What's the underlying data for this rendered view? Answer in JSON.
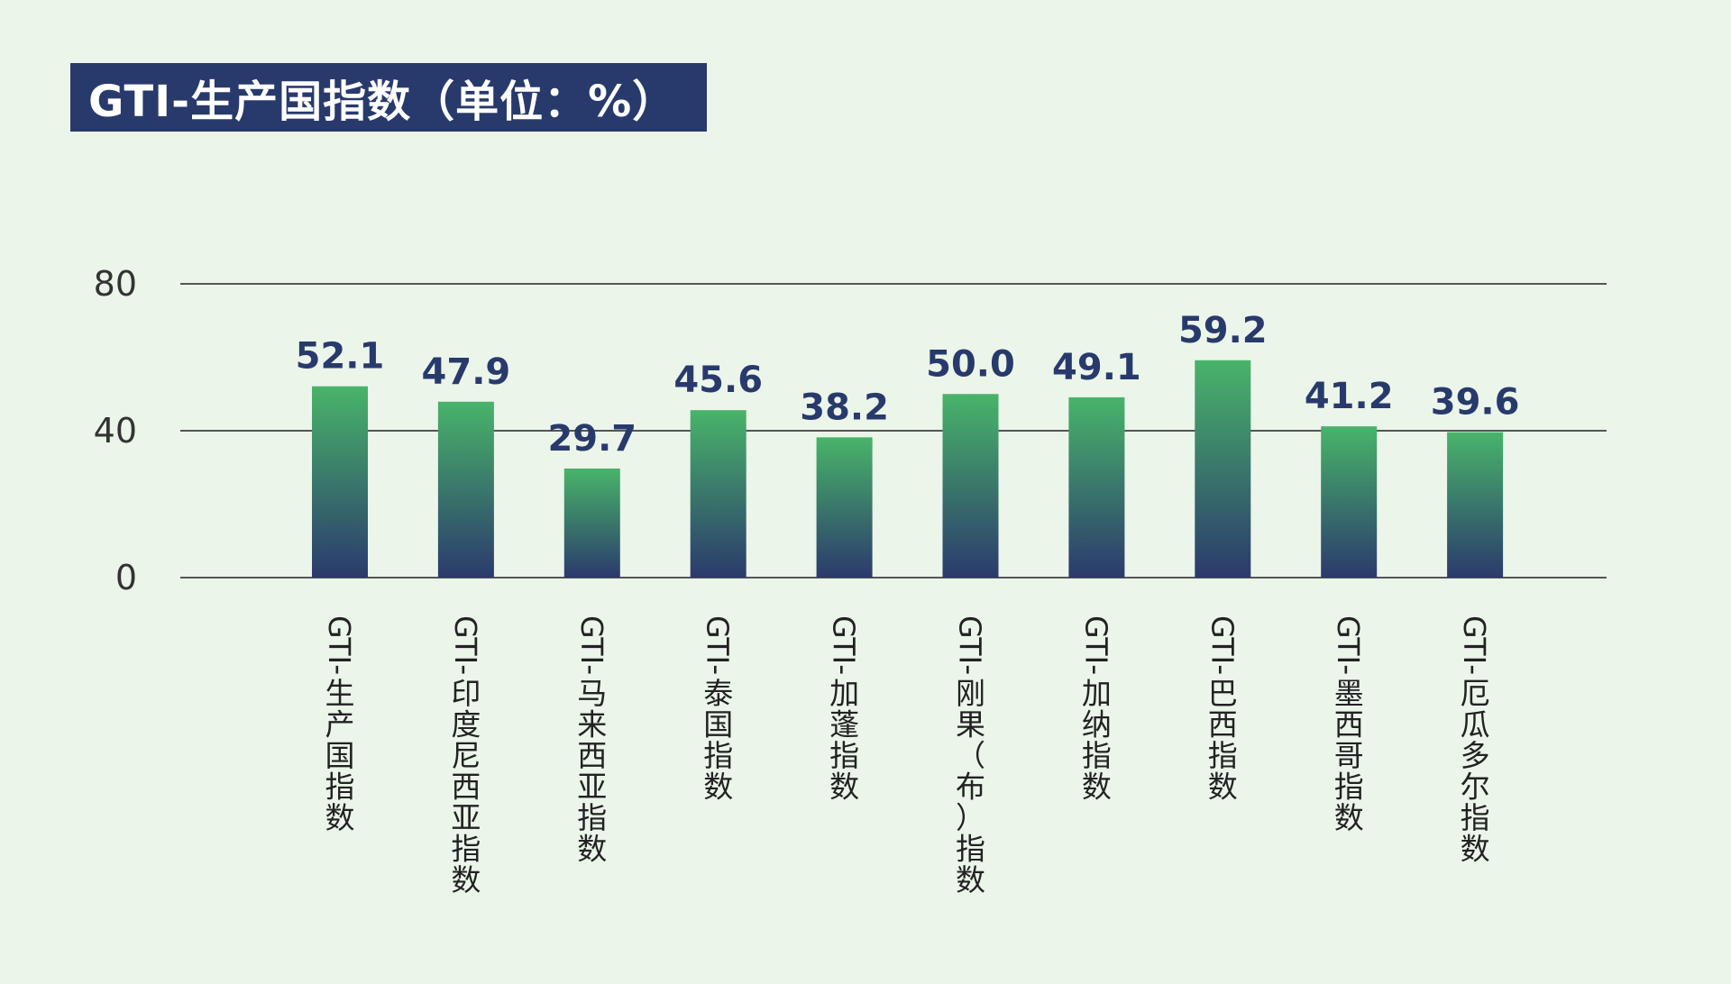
{
  "header": {
    "title": "GTI-生产国指数（单位：%）"
  },
  "colors": {
    "background": "#ebf5ea",
    "title_bg": "#283a6c",
    "bar_top": "#48b46a",
    "bar_bottom": "#2b3a6c",
    "value_label": "#283a6c",
    "gridline": "#555555"
  },
  "chart_data": {
    "type": "bar",
    "title": "GTI-生产国指数（单位：%）",
    "categories": [
      "GTI-生产国指数",
      "GTI-印度尼西亚指数",
      "GTI-马来西亚指数",
      "GTI-泰国指数",
      "GTI-加蓬指数",
      "GTI-刚果（布）指数",
      "GTI-加纳指数",
      "GTI-巴西指数",
      "GTI-墨西哥指数",
      "GTI-厄瓜多尔指数"
    ],
    "values": [
      52.1,
      47.9,
      29.7,
      45.6,
      38.2,
      50.0,
      49.1,
      59.2,
      41.2,
      39.6
    ],
    "value_labels": [
      "52.1",
      "47.9",
      "29.7",
      "45.6",
      "38.2",
      "50.0",
      "49.1",
      "59.2",
      "41.2",
      "39.6"
    ],
    "ylim": [
      0,
      80
    ],
    "yticks": [
      0,
      40,
      80
    ],
    "ytick_labels": [
      "0",
      "40",
      "80"
    ],
    "grid": true,
    "xlabel": "",
    "ylabel": ""
  }
}
